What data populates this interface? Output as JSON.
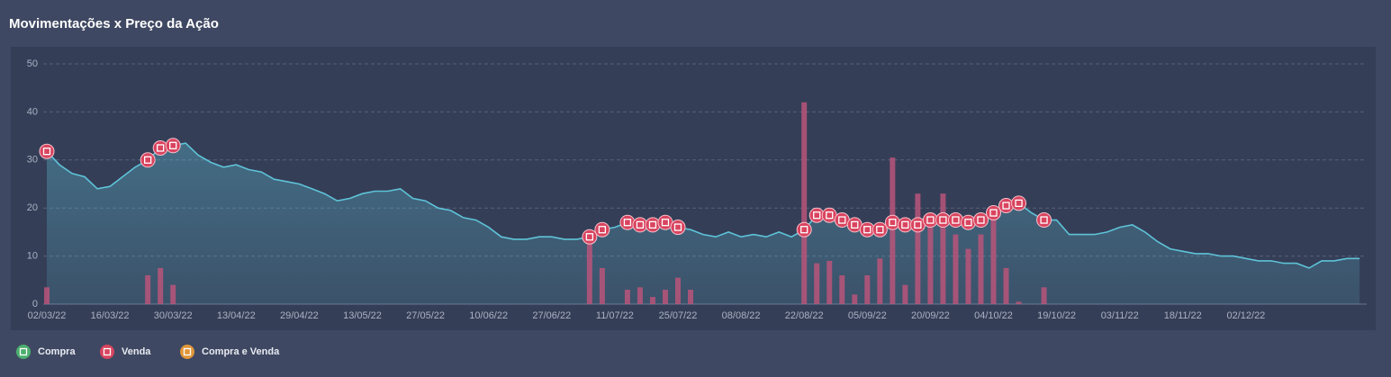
{
  "chart_data": {
    "type": "line",
    "title": "Movimentações x Preço da Ação",
    "categories": [
      "02/03/22",
      null,
      null,
      null,
      null,
      "16/03/22",
      null,
      null,
      null,
      null,
      "30/03/22",
      null,
      null,
      null,
      null,
      "13/04/22",
      null,
      null,
      null,
      null,
      "29/04/22",
      null,
      null,
      null,
      null,
      "13/05/22",
      null,
      null,
      null,
      null,
      "27/05/22",
      null,
      null,
      null,
      null,
      "10/06/22",
      null,
      null,
      null,
      null,
      "27/06/22",
      null,
      null,
      null,
      null,
      "11/07/22",
      null,
      null,
      null,
      null,
      "25/07/22",
      null,
      null,
      null,
      null,
      "08/08/22",
      null,
      null,
      null,
      null,
      "22/08/22",
      null,
      null,
      null,
      null,
      "05/09/22",
      null,
      null,
      null,
      null,
      "20/09/22",
      null,
      null,
      null,
      null,
      "04/10/22",
      null,
      null,
      null,
      null,
      "19/10/22",
      null,
      null,
      null,
      null,
      "03/11/22",
      null,
      null,
      null,
      null,
      "18/11/22",
      null,
      null,
      null,
      null,
      "02/12/22",
      null,
      null,
      null,
      null,
      null,
      null,
      null,
      null,
      null
    ],
    "price": {
      "color": "#5ec3d8",
      "values": [
        31.8,
        29,
        27.2,
        26.5,
        24,
        24.5,
        26.5,
        28.5,
        30,
        32.5,
        33,
        33.5,
        31,
        29.5,
        28.5,
        29,
        28,
        27.5,
        26,
        25.5,
        25,
        24,
        23,
        21.5,
        22,
        23,
        23.5,
        23.5,
        24,
        22,
        21.5,
        20,
        19.5,
        18,
        17.5,
        16,
        14,
        13.5,
        13.5,
        14,
        14,
        13.5,
        13.5,
        14,
        15.5,
        16,
        17,
        16.5,
        16.5,
        17,
        16,
        15.5,
        14.5,
        14,
        15,
        14,
        14.5,
        14,
        15,
        14,
        15.5,
        18.5,
        18.5,
        17.5,
        16.5,
        15.5,
        15.5,
        17,
        16.5,
        16.5,
        17.5,
        17.5,
        17.5,
        17,
        17.5,
        19,
        20.5,
        21,
        19,
        17.5,
        17.5,
        14.5,
        14.5,
        14.5,
        15,
        16,
        16.5,
        15,
        13,
        11.5,
        11,
        10.5,
        10.5,
        10,
        10,
        9.5,
        9,
        9,
        8.5,
        8.5,
        7.5,
        9,
        9,
        9.5,
        9.5
      ]
    },
    "volume": {
      "color": "#b9557a",
      "values": [
        3.5,
        null,
        null,
        null,
        null,
        null,
        null,
        null,
        6,
        7.5,
        4,
        null,
        null,
        null,
        null,
        null,
        null,
        null,
        null,
        null,
        null,
        null,
        null,
        null,
        null,
        null,
        null,
        null,
        null,
        null,
        null,
        null,
        null,
        null,
        null,
        null,
        null,
        null,
        null,
        null,
        null,
        null,
        null,
        15.5,
        7.5,
        null,
        3,
        3.5,
        1.5,
        3,
        5.5,
        3,
        null,
        null,
        null,
        null,
        null,
        null,
        null,
        null,
        42,
        8.5,
        9,
        6,
        2,
        6,
        9.5,
        30.5,
        4,
        23,
        19,
        23,
        14.5,
        11.5,
        14.5,
        18,
        7.5,
        0.5,
        null,
        3.5,
        null,
        null,
        null,
        null,
        null,
        null,
        null,
        null,
        null,
        null,
        null,
        null,
        null,
        null,
        null,
        null,
        null,
        null,
        null,
        null,
        null,
        null,
        null,
        null,
        null
      ]
    },
    "series": [
      {
        "name": "Compra",
        "color": "#4caf6e"
      },
      {
        "name": "Venda",
        "color": "#d9445f",
        "values": [
          31.8,
          null,
          null,
          null,
          null,
          null,
          null,
          null,
          30,
          32.5,
          33,
          null,
          null,
          null,
          null,
          null,
          null,
          null,
          null,
          null,
          null,
          null,
          null,
          null,
          null,
          null,
          null,
          null,
          null,
          null,
          null,
          null,
          null,
          null,
          null,
          null,
          null,
          null,
          null,
          null,
          null,
          null,
          null,
          14,
          15.5,
          null,
          17,
          16.5,
          16.5,
          17,
          16,
          null,
          null,
          null,
          null,
          null,
          null,
          null,
          null,
          null,
          15.5,
          18.5,
          18.5,
          17.5,
          16.5,
          15.5,
          15.5,
          17,
          16.5,
          16.5,
          17.5,
          17.5,
          17.5,
          17,
          17.5,
          19,
          20.5,
          21,
          null,
          17.5,
          null,
          null,
          null,
          null,
          null,
          null,
          null,
          null,
          null,
          null,
          null,
          null,
          null,
          null,
          null,
          null,
          null,
          null,
          null,
          null,
          null,
          null,
          null,
          null,
          null
        ]
      },
      {
        "name": "Compra e Venda",
        "color": "#e0963a"
      }
    ],
    "ylim": [
      0,
      50
    ],
    "yticks": [
      0,
      10,
      20,
      30,
      40,
      50
    ],
    "grid": true
  }
}
